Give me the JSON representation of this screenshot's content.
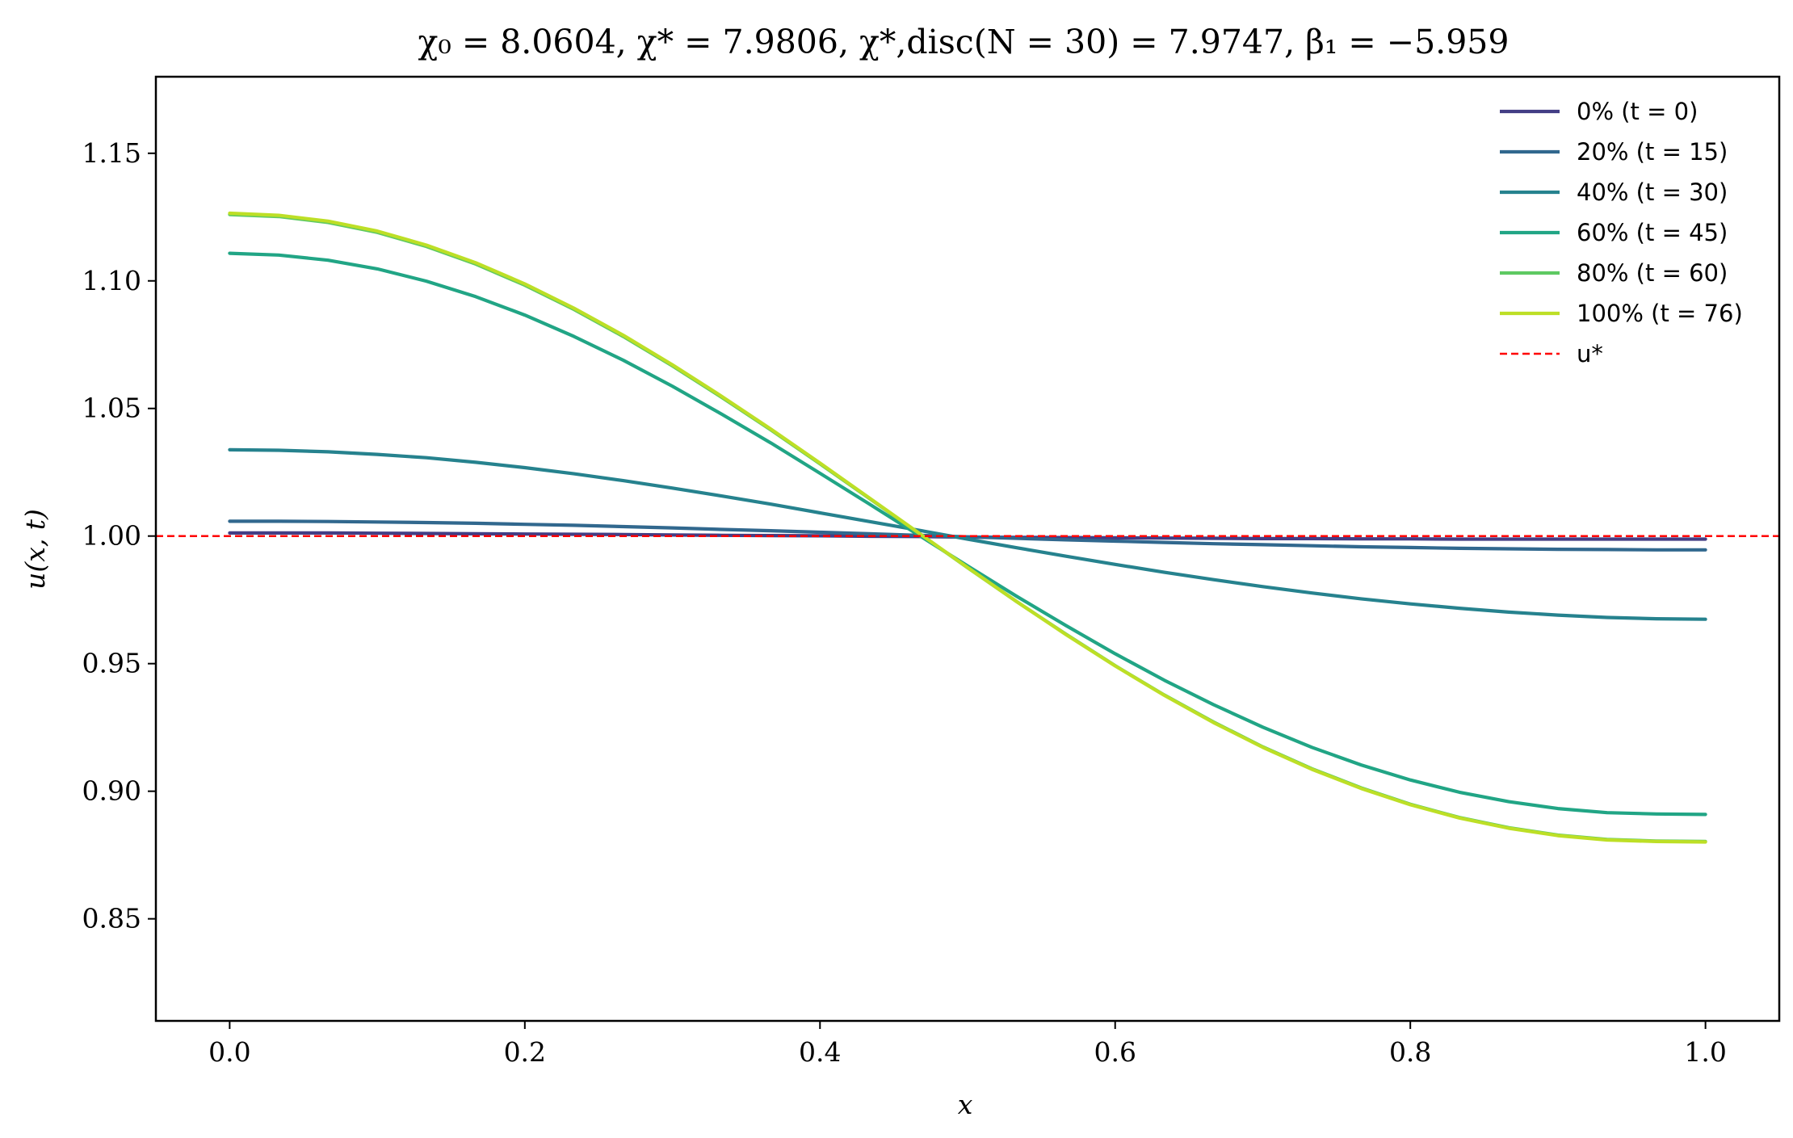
{
  "chart_data": {
    "type": "line",
    "title": "χ₀ = 8.0604,  χ* = 7.9806,  χ*,disc(N = 30) = 7.9747,  β₁ = −5.959",
    "xlabel": "x",
    "ylabel": "u(x, t)",
    "xlim": [
      -0.05,
      1.05
    ],
    "ylim": [
      0.81,
      1.18
    ],
    "xticks": [
      0.0,
      0.2,
      0.4,
      0.6,
      0.8,
      1.0
    ],
    "xtick_labels": [
      "0.0",
      "0.2",
      "0.4",
      "0.6",
      "0.8",
      "1.0"
    ],
    "yticks": [
      0.85,
      0.9,
      0.95,
      1.0,
      1.05,
      1.1,
      1.15
    ],
    "ytick_labels": [
      "0.85",
      "0.90",
      "0.95",
      "1.00",
      "1.05",
      "1.10",
      "1.15"
    ],
    "grid": false,
    "legend_position": "top-right",
    "reference_line": {
      "name": "u*",
      "y": 1.0,
      "color": "#ff0000",
      "style": "dashed"
    },
    "x": [
      0.0,
      0.0333,
      0.0667,
      0.1,
      0.1333,
      0.1667,
      0.2,
      0.2333,
      0.2667,
      0.3,
      0.3333,
      0.3667,
      0.4,
      0.4333,
      0.4667,
      0.5,
      0.5333,
      0.5667,
      0.6,
      0.6333,
      0.6667,
      0.7,
      0.7333,
      0.7667,
      0.8,
      0.8333,
      0.8667,
      0.9,
      0.9333,
      0.9667,
      1.0
    ],
    "series": [
      {
        "name": "0% (t = 0)",
        "color": "#433e85",
        "values": [
          1.0012,
          1.0012,
          1.0012,
          1.0011,
          1.001,
          1.0009,
          1.0008,
          1.0007,
          1.0006,
          1.0004,
          1.0003,
          1.0002,
          1.0001,
          0.9999,
          0.9998,
          0.9996,
          0.9995,
          0.9994,
          0.9993,
          0.9992,
          0.9991,
          0.999,
          0.999,
          0.9989,
          0.9989,
          0.9988,
          0.9988,
          0.9988,
          0.9988,
          0.9988,
          0.9988
        ]
      },
      {
        "name": "20% (t = 15)",
        "color": "#31688e",
        "values": [
          1.0058,
          1.0058,
          1.0057,
          1.0055,
          1.0053,
          1.005,
          1.0046,
          1.0042,
          1.0037,
          1.0032,
          1.0026,
          1.0021,
          1.0015,
          1.0009,
          1.0003,
          0.9997,
          0.9991,
          0.9985,
          0.998,
          0.9975,
          0.997,
          0.9966,
          0.9962,
          0.9958,
          0.9955,
          0.9952,
          0.995,
          0.9948,
          0.9947,
          0.9946,
          0.9946
        ]
      },
      {
        "name": "40% (t = 30)",
        "color": "#26828e",
        "values": [
          1.0338,
          1.0336,
          1.033,
          1.032,
          1.0307,
          1.0289,
          1.0268,
          1.0244,
          1.0217,
          1.0188,
          1.0157,
          1.0125,
          1.0091,
          1.0057,
          1.0023,
          0.9988,
          0.9954,
          0.9921,
          0.9889,
          0.9858,
          0.9829,
          0.9802,
          0.9777,
          0.9754,
          0.9734,
          0.9717,
          0.9702,
          0.969,
          0.9681,
          0.9676,
          0.9674
        ]
      },
      {
        "name": "60% (t = 45)",
        "color": "#21a585",
        "values": [
          1.1108,
          1.1101,
          1.1081,
          1.1047,
          1.0999,
          1.0938,
          1.0866,
          1.0782,
          1.0689,
          1.0587,
          1.0478,
          1.0365,
          1.0246,
          1.0126,
          1.0004,
          0.9883,
          0.9764,
          0.9649,
          0.9539,
          0.9435,
          0.9339,
          0.9251,
          0.9172,
          0.9103,
          0.9044,
          0.8996,
          0.8959,
          0.8932,
          0.8916,
          0.8911,
          0.8909
        ]
      },
      {
        "name": "80% (t = 60)",
        "color": "#5ec962",
        "values": [
          1.126,
          1.1252,
          1.1229,
          1.119,
          1.1135,
          1.1066,
          1.0983,
          1.0888,
          1.0782,
          1.0667,
          1.0544,
          1.0416,
          1.0283,
          1.0148,
          1.0012,
          0.9876,
          0.9743,
          0.9615,
          0.9492,
          0.9377,
          0.9271,
          0.9174,
          0.9088,
          0.9013,
          0.8949,
          0.8897,
          0.8857,
          0.8828,
          0.8811,
          0.8805,
          0.8803
        ]
      },
      {
        "name": "100% (t = 76)",
        "color": "#bddf26",
        "values": [
          1.1265,
          1.1257,
          1.1234,
          1.1195,
          1.114,
          1.1071,
          1.0988,
          1.0893,
          1.0787,
          1.0671,
          1.0548,
          1.0419,
          1.0286,
          1.015,
          1.0013,
          0.9877,
          0.9743,
          0.9614,
          0.9491,
          0.9376,
          0.9269,
          0.9172,
          0.9086,
          0.9011,
          0.8947,
          0.8895,
          0.8855,
          0.8826,
          0.8809,
          0.8803,
          0.8801
        ]
      }
    ]
  }
}
